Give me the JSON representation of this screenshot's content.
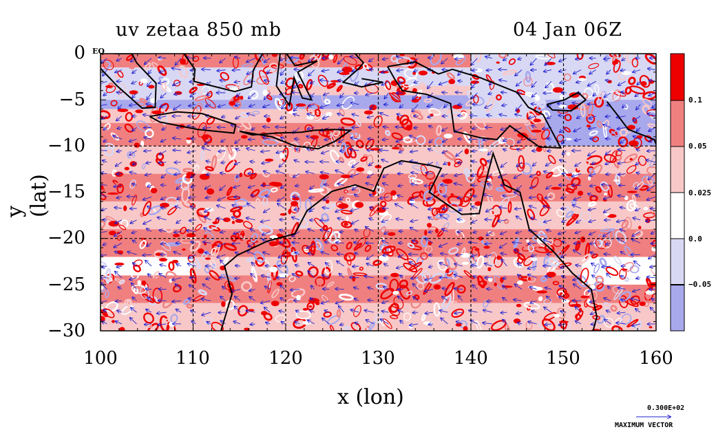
{
  "plot": {
    "title_left": "uv zetaa 850 mb",
    "title_right": "04 Jan 06Z",
    "xlabel": "x (lon)",
    "ylabel": "y (lat)",
    "x_ticks": [
      "100",
      "110",
      "120",
      "130",
      "140",
      "150",
      "160"
    ],
    "y_ticks": [
      "0",
      "−5",
      "−10",
      "−15",
      "−20",
      "−25",
      "−30"
    ],
    "eq_label": "EQ",
    "colors": {
      "dark_red": "#ee0000",
      "mid_red": "#f08080",
      "light_red": "#f8c8c8",
      "white": "#ffffff",
      "light_blue": "#d8d8f4",
      "blue": "#a8a8ec",
      "vector": "#2020d0",
      "coast": "#000000"
    }
  },
  "colorbar": {
    "labels": [
      "0.1",
      "0.05",
      "0.025",
      "0.0",
      "−0.05"
    ]
  },
  "max_vector": {
    "value": "0.300E+02",
    "label": "MAXIMUM VECTOR"
  },
  "chart_data": {
    "type": "heatmap",
    "title": "uv zetaa 850 mb",
    "subtitle": "04 Jan 06Z",
    "xlabel": "x (lon)",
    "ylabel": "y (lat)",
    "xlim": [
      100,
      160
    ],
    "ylim": [
      -30,
      0
    ],
    "x_ticks": [
      100,
      110,
      120,
      130,
      140,
      150,
      160
    ],
    "y_ticks": [
      0,
      -5,
      -10,
      -15,
      -20,
      -25,
      -30
    ],
    "grid": true,
    "contour_levels": [
      -0.05,
      0.0,
      0.025,
      0.05,
      0.1
    ],
    "colorbar_labels": [
      "0.1",
      "0.05",
      "0.025",
      "0.0",
      "−0.05"
    ],
    "max_vector": "0.300E+02"
  }
}
